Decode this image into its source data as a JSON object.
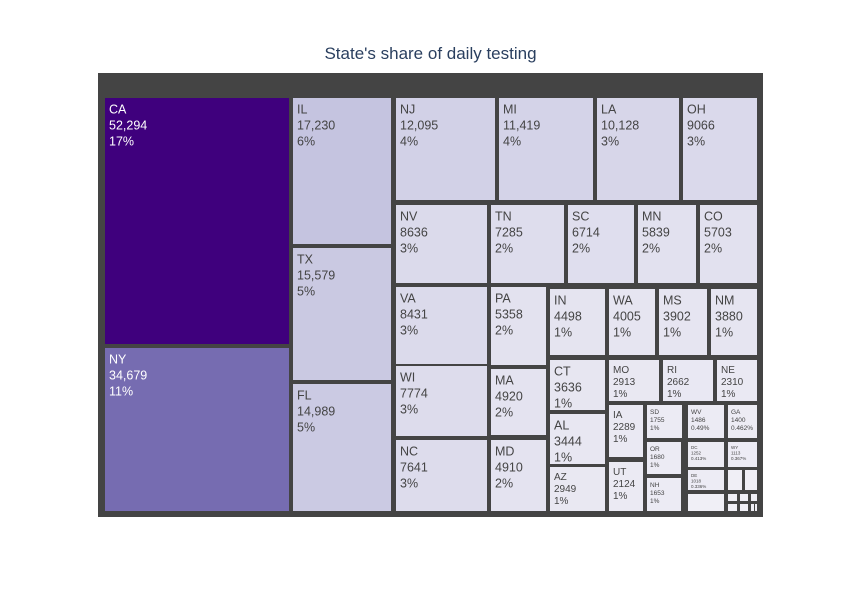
{
  "chart_data": {
    "type": "treemap",
    "title": "State's share of daily testing",
    "color_scale": [
      "#f0eff6",
      "#c5c4e0",
      "#756bb1",
      "#3f007d"
    ],
    "tiles": [
      {
        "label": "CA",
        "value": "52,294",
        "percent": "17%"
      },
      {
        "label": "NY",
        "value": "34,679",
        "percent": "11%"
      },
      {
        "label": "IL",
        "value": "17,230",
        "percent": "6%"
      },
      {
        "label": "TX",
        "value": "15,579",
        "percent": "5%"
      },
      {
        "label": "FL",
        "value": "14,989",
        "percent": "5%"
      },
      {
        "label": "NJ",
        "value": "12,095",
        "percent": "4%"
      },
      {
        "label": "MI",
        "value": "11,419",
        "percent": "4%"
      },
      {
        "label": "LA",
        "value": "10,128",
        "percent": "3%"
      },
      {
        "label": "OH",
        "value": "9066",
        "percent": "3%"
      },
      {
        "label": "NV",
        "value": "8636",
        "percent": "3%"
      },
      {
        "label": "TN",
        "value": "7285",
        "percent": "2%"
      },
      {
        "label": "SC",
        "value": "6714",
        "percent": "2%"
      },
      {
        "label": "MN",
        "value": "5839",
        "percent": "2%"
      },
      {
        "label": "CO",
        "value": "5703",
        "percent": "2%"
      },
      {
        "label": "VA",
        "value": "8431",
        "percent": "3%"
      },
      {
        "label": "PA",
        "value": "5358",
        "percent": "2%"
      },
      {
        "label": "IN",
        "value": "4498",
        "percent": "1%"
      },
      {
        "label": "WA",
        "value": "4005",
        "percent": "1%"
      },
      {
        "label": "MS",
        "value": "3902",
        "percent": "1%"
      },
      {
        "label": "NM",
        "value": "3880",
        "percent": "1%"
      },
      {
        "label": "WI",
        "value": "7774",
        "percent": "3%"
      },
      {
        "label": "MA",
        "value": "4920",
        "percent": "2%"
      },
      {
        "label": "CT",
        "value": "3636",
        "percent": "1%"
      },
      {
        "label": "MO",
        "value": "2913",
        "percent": "1%"
      },
      {
        "label": "RI",
        "value": "2662",
        "percent": "1%"
      },
      {
        "label": "NE",
        "value": "2310",
        "percent": "1%"
      },
      {
        "label": "AL",
        "value": "3444",
        "percent": "1%"
      },
      {
        "label": "IA",
        "value": "2289",
        "percent": "1%"
      },
      {
        "label": "SD",
        "value": "1755",
        "percent": "1%"
      },
      {
        "label": "WV",
        "value": "1486",
        "percent": "0.49%"
      },
      {
        "label": "GA",
        "value": "1400",
        "percent": "0.462%"
      },
      {
        "label": "NC",
        "value": "7641",
        "percent": "3%"
      },
      {
        "label": "MD",
        "value": "4910",
        "percent": "2%"
      },
      {
        "label": "AZ",
        "value": "2949",
        "percent": "1%"
      },
      {
        "label": "UT",
        "value": "2124",
        "percent": "1%"
      },
      {
        "label": "OR",
        "value": "1680",
        "percent": "1%"
      },
      {
        "label": "DC",
        "value": "1252",
        "percent": "0.413%"
      },
      {
        "label": "WY",
        "value": "1113",
        "percent": "0.367%"
      },
      {
        "label": "NH",
        "value": "1653",
        "percent": "1%"
      },
      {
        "label": "DE",
        "value": "1018",
        "percent": "0.336%"
      },
      {
        "label": "",
        "value": "",
        "percent": ""
      },
      {
        "label": "",
        "value": "",
        "percent": ""
      },
      {
        "label": "",
        "value": "",
        "percent": ""
      },
      {
        "label": "",
        "value": "",
        "percent": ""
      },
      {
        "label": "",
        "value": "",
        "percent": ""
      },
      {
        "label": "",
        "value": "",
        "percent": ""
      },
      {
        "label": "",
        "value": "",
        "percent": ""
      },
      {
        "label": "",
        "value": "",
        "percent": ""
      },
      {
        "label": "",
        "value": "",
        "percent": ""
      },
      {
        "label": "",
        "value": "",
        "percent": ""
      }
    ]
  }
}
